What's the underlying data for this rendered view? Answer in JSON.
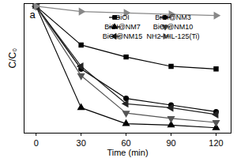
{
  "chart_data": {
    "type": "line",
    "annotations": [
      "a"
    ],
    "x_label": "Time (min)",
    "y_label": "C/C₀",
    "x": [
      0,
      30,
      60,
      90,
      120
    ],
    "xlim": [
      -8,
      130
    ],
    "xticks": [
      0,
      30,
      60,
      90,
      120
    ],
    "ylim": [
      0.05,
      1.02
    ],
    "tick_labels": "x",
    "legend": "upper right",
    "series": [
      {
        "name": "BiOI",
        "color": "#000000",
        "marker": "square",
        "values": [
          1.0,
          0.71,
          0.62,
          0.55,
          0.53
        ]
      },
      {
        "name": "BiOI@NM3",
        "color": "#000000",
        "marker": "circle",
        "values": [
          1.0,
          0.53,
          0.31,
          0.26,
          0.21
        ]
      },
      {
        "name": "BiOI@NM7",
        "color": "#000000",
        "marker": "triangle-up",
        "values": [
          1.0,
          0.24,
          0.12,
          0.11,
          0.09
        ]
      },
      {
        "name": "BiOI@NM10",
        "color": "#555555",
        "marker": "triangle-down",
        "values": [
          1.0,
          0.48,
          0.2,
          0.16,
          0.13
        ]
      },
      {
        "name": "BiOI@NM15",
        "color": "#222222",
        "marker": "triangle-left",
        "values": [
          1.0,
          0.55,
          0.27,
          0.24,
          0.19
        ]
      },
      {
        "name": "NH2-MIL-125(Ti)",
        "color": "#888888",
        "marker": "triangle-right",
        "values": [
          1.0,
          0.96,
          0.95,
          0.94,
          0.93
        ]
      }
    ]
  }
}
